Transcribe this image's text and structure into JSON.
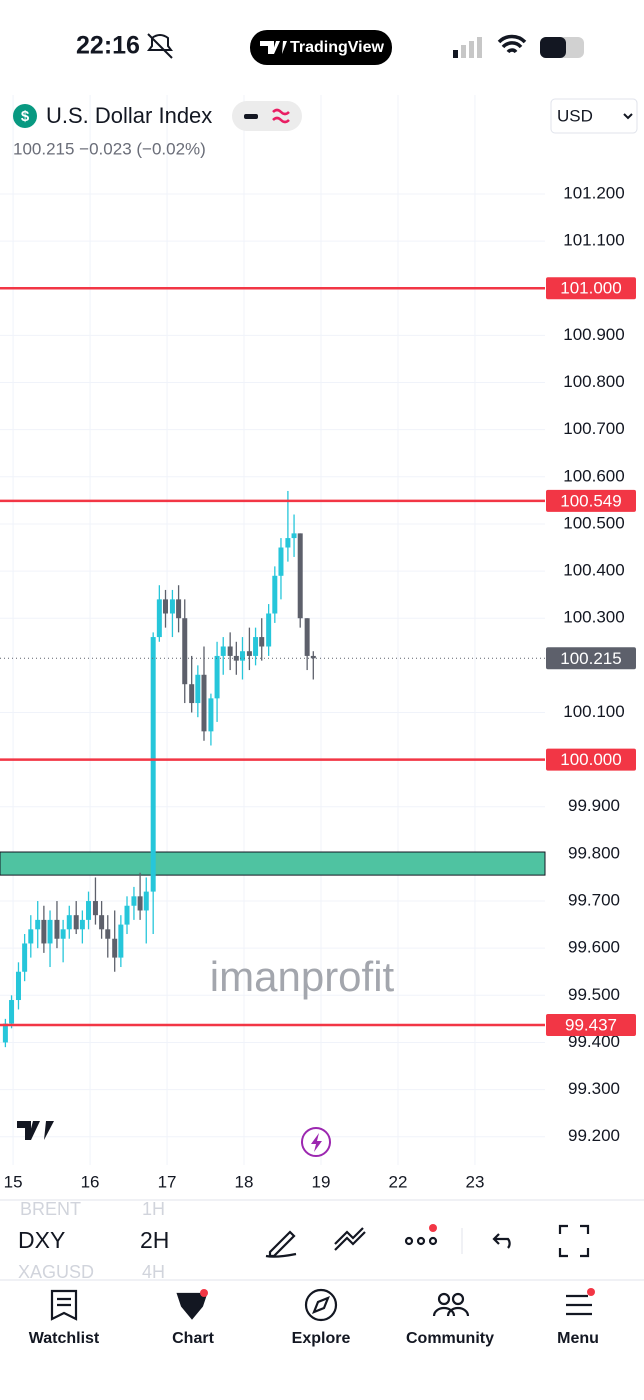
{
  "status": {
    "time": "22:16",
    "app": "TradingView"
  },
  "header": {
    "symbol_name": "U.S. Dollar Index",
    "quote": "100.215 −0.023 (−0.02%)",
    "currency": "USD"
  },
  "watermark": "imanprofit",
  "toolbar": {
    "symbol": "DXY",
    "interval": "2H",
    "prev_symbol": "BRENT",
    "prev_interval": "1H",
    "next_symbol": "XAGUSD",
    "next_interval": "4H"
  },
  "nav": [
    "Watchlist",
    "Chart",
    "Explore",
    "Community",
    "Menu"
  ],
  "chart_data": {
    "type": "candlestick",
    "up_color": "#26c6da",
    "down_color": "#5d606b",
    "grid": true,
    "xlim": [
      -0.17,
      6.91
    ],
    "ylim": [
      99.14,
      101.41
    ],
    "xticks": [
      {
        "value": 0,
        "label": "15"
      },
      {
        "value": 1,
        "label": "16"
      },
      {
        "value": 2,
        "label": "17"
      },
      {
        "value": 3,
        "label": "18"
      },
      {
        "value": 4,
        "label": "19"
      },
      {
        "value": 5,
        "label": "22"
      },
      {
        "value": 6,
        "label": "23"
      }
    ],
    "yticks": [
      {
        "value": 101.2,
        "label": "101.200"
      },
      {
        "value": 101.1,
        "label": "101.100"
      },
      {
        "value": 100.9,
        "label": "100.900"
      },
      {
        "value": 100.8,
        "label": "100.800"
      },
      {
        "value": 100.7,
        "label": "100.700"
      },
      {
        "value": 100.6,
        "label": "100.600"
      },
      {
        "value": 100.5,
        "label": "100.500"
      },
      {
        "value": 100.4,
        "label": "100.400"
      },
      {
        "value": 100.3,
        "label": "100.300"
      },
      {
        "value": 100.1,
        "label": "100.100"
      },
      {
        "value": 99.9,
        "label": "99.900"
      },
      {
        "value": 99.8,
        "label": "99.800"
      },
      {
        "value": 99.7,
        "label": "99.700"
      },
      {
        "value": 99.6,
        "label": "99.600"
      },
      {
        "value": 99.5,
        "label": "99.500"
      },
      {
        "value": 99.4,
        "label": "99.400"
      },
      {
        "value": 99.3,
        "label": "99.300"
      },
      {
        "value": 99.2,
        "label": "99.200"
      }
    ],
    "levels": [
      {
        "value": 101,
        "label": "101.000",
        "color": "#f23645"
      },
      {
        "value": 100.549,
        "label": "100.549",
        "color": "#f23645"
      },
      {
        "value": 100,
        "label": "100.000",
        "color": "#f23645"
      },
      {
        "value": 99.437,
        "label": "99.437",
        "color": "#f23645"
      }
    ],
    "current_price": {
      "value": 100.215,
      "label": "100.215",
      "color": "#5d606b"
    },
    "zone": {
      "from": 99.755,
      "to": 99.804,
      "color": "#4fc3a1"
    },
    "x": [
      -0.1,
      -0.02,
      0.07,
      0.15,
      0.23,
      0.32,
      0.4,
      0.48,
      0.57,
      0.65,
      0.73,
      0.82,
      0.9,
      0.98,
      1.07,
      1.15,
      1.23,
      1.32,
      1.4,
      1.48,
      1.57,
      1.65,
      1.73,
      1.82,
      1.9,
      1.98,
      2.07,
      2.15,
      2.23,
      2.32,
      2.4,
      2.48,
      2.57,
      2.65,
      2.73,
      2.82,
      2.9,
      2.98,
      3.07,
      3.15,
      3.23,
      3.32,
      3.4,
      3.48,
      3.57,
      3.65,
      3.73,
      3.82,
      3.9
    ],
    "open": [
      99.4,
      99.44,
      99.49,
      99.55,
      99.61,
      99.64,
      99.66,
      99.61,
      99.66,
      99.62,
      99.64,
      99.67,
      99.64,
      99.66,
      99.7,
      99.67,
      99.64,
      99.62,
      99.58,
      99.65,
      99.69,
      99.71,
      99.68,
      99.72,
      100.26,
      100.34,
      100.31,
      100.34,
      100.3,
      100.16,
      100.12,
      100.18,
      100.06,
      100.13,
      100.22,
      100.24,
      100.22,
      100.21,
      100.23,
      100.22,
      100.26,
      100.24,
      100.31,
      100.39,
      100.45,
      100.47,
      100.48,
      100.3,
      100.22
    ],
    "high": [
      99.45,
      99.5,
      99.57,
      99.63,
      99.67,
      99.7,
      99.69,
      99.68,
      99.7,
      99.66,
      99.69,
      99.7,
      99.68,
      99.72,
      99.75,
      99.7,
      99.67,
      99.68,
      99.67,
      99.71,
      99.73,
      99.76,
      99.75,
      100.27,
      100.37,
      100.36,
      100.36,
      100.37,
      100.34,
      100.22,
      100.2,
      100.24,
      100.14,
      100.25,
      100.26,
      100.27,
      100.25,
      100.26,
      100.28,
      100.28,
      100.3,
      100.33,
      100.41,
      100.47,
      100.57,
      100.52,
      100.48,
      100.3,
      100.23
    ],
    "low": [
      99.39,
      99.43,
      99.47,
      99.53,
      99.58,
      99.6,
      99.59,
      99.56,
      99.6,
      99.57,
      99.62,
      99.63,
      99.61,
      99.64,
      99.65,
      99.62,
      99.58,
      99.55,
      99.56,
      99.63,
      99.66,
      99.66,
      99.61,
      99.63,
      100.25,
      100.28,
      100.26,
      100.27,
      100.12,
      100.1,
      100.09,
      100.04,
      100.03,
      100.08,
      100.18,
      100.19,
      100.18,
      100.17,
      100.19,
      100.2,
      100.21,
      100.22,
      100.29,
      100.34,
      100.42,
      100.43,
      100.28,
      100.19,
      100.17
    ],
    "close": [
      99.44,
      99.49,
      99.55,
      99.61,
      99.64,
      99.66,
      99.61,
      99.66,
      99.62,
      99.64,
      99.67,
      99.64,
      99.66,
      99.7,
      99.67,
      99.64,
      99.62,
      99.58,
      99.65,
      99.69,
      99.71,
      99.68,
      99.72,
      100.26,
      100.34,
      100.31,
      100.34,
      100.3,
      100.16,
      100.12,
      100.18,
      100.06,
      100.13,
      100.22,
      100.24,
      100.22,
      100.21,
      100.23,
      100.22,
      100.26,
      100.24,
      100.31,
      100.39,
      100.45,
      100.47,
      100.48,
      100.3,
      100.22,
      100.215
    ]
  }
}
